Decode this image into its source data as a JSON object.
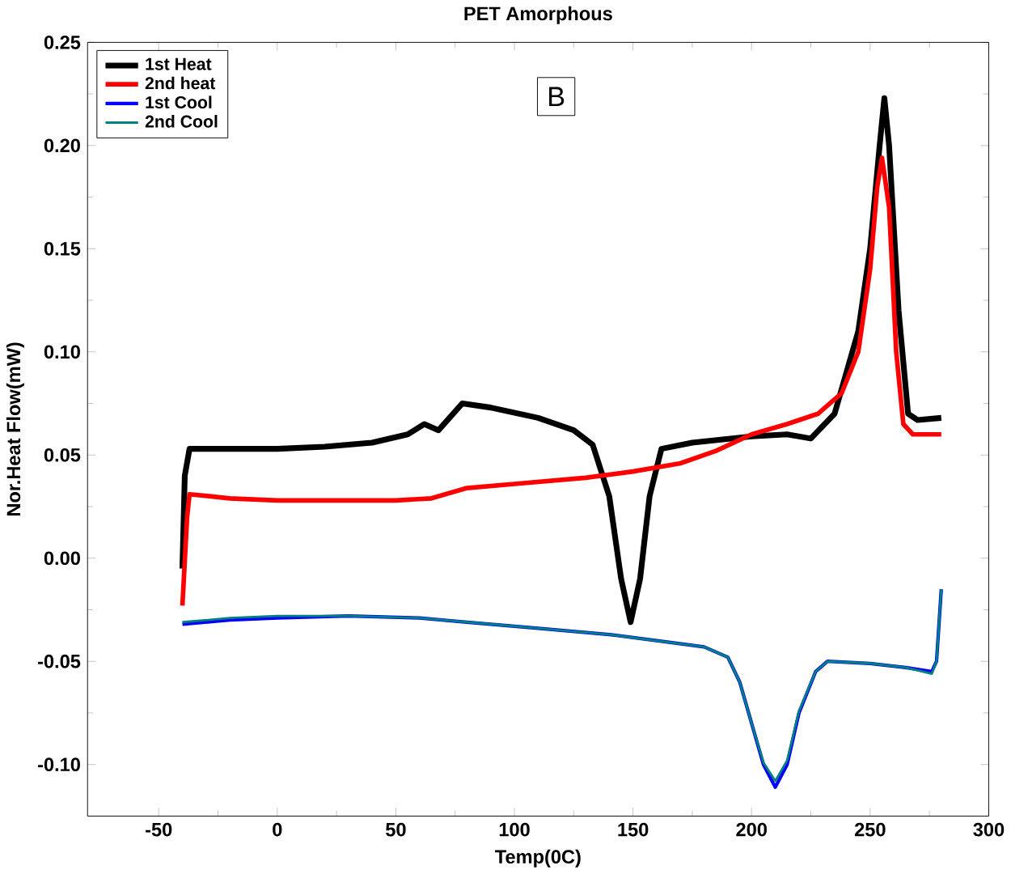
{
  "chart_data": {
    "type": "line",
    "title": "PET Amorphous",
    "xlabel": "Temp(0C)",
    "ylabel": "Nor.Heat Flow(mW)",
    "annotations": [
      "B"
    ],
    "xlim": [
      -80,
      300
    ],
    "ylim": [
      -0.125,
      0.25
    ],
    "xticks": [
      -50,
      0,
      50,
      100,
      150,
      200,
      250,
      300
    ],
    "yticks": [
      {
        "value": -0.1,
        "label": "-0.10"
      },
      {
        "value": -0.05,
        "label": "-0.05"
      },
      {
        "value": 0,
        "label": "0.00"
      },
      {
        "value": 0.05,
        "label": "0.05"
      },
      {
        "value": 0.1,
        "label": "0.10"
      },
      {
        "value": 0.15,
        "label": "0.15"
      },
      {
        "value": 0.2,
        "label": "0.20"
      },
      {
        "value": 0.25,
        "label": "0.25"
      }
    ],
    "legend": "top left",
    "grid": false,
    "marker": "none",
    "line_style": "solid",
    "series": [
      {
        "name": "1st Heat",
        "color": "#000000",
        "x": [
          -40,
          -39,
          -37,
          -20,
          0,
          20,
          40,
          55,
          62,
          68,
          78,
          90,
          110,
          125,
          133,
          140,
          145,
          149,
          153,
          157,
          162,
          175,
          200,
          215,
          225,
          235,
          245,
          250,
          254,
          256,
          258,
          262,
          266,
          270,
          280
        ],
        "values": [
          -0.005,
          0.04,
          0.053,
          0.053,
          0.053,
          0.054,
          0.056,
          0.06,
          0.065,
          0.062,
          0.075,
          0.073,
          0.068,
          0.062,
          0.055,
          0.03,
          -0.01,
          -0.031,
          -0.01,
          0.03,
          0.053,
          0.056,
          0.059,
          0.06,
          0.058,
          0.07,
          0.11,
          0.15,
          0.2,
          0.223,
          0.2,
          0.12,
          0.07,
          0.067,
          0.068
        ]
      },
      {
        "name": "2nd heat",
        "color": "#ff0000",
        "x": [
          -40,
          -38,
          -37,
          -20,
          0,
          50,
          65,
          80,
          100,
          130,
          150,
          170,
          185,
          200,
          215,
          228,
          238,
          245,
          250,
          253,
          255,
          258,
          261,
          264,
          268,
          280
        ],
        "values": [
          -0.023,
          0.02,
          0.031,
          0.029,
          0.028,
          0.028,
          0.029,
          0.034,
          0.036,
          0.039,
          0.042,
          0.046,
          0.052,
          0.06,
          0.065,
          0.07,
          0.08,
          0.1,
          0.14,
          0.18,
          0.194,
          0.17,
          0.1,
          0.065,
          0.06,
          0.06
        ]
      },
      {
        "name": "1st Cool",
        "color": "#0000ff",
        "x": [
          -40,
          -20,
          0,
          30,
          60,
          80,
          110,
          140,
          160,
          180,
          190,
          195,
          200,
          205,
          210,
          215,
          220,
          227,
          232,
          250,
          265,
          276,
          278,
          280
        ],
        "values": [
          -0.032,
          -0.03,
          -0.029,
          -0.028,
          -0.029,
          -0.031,
          -0.034,
          -0.037,
          -0.04,
          -0.043,
          -0.048,
          -0.06,
          -0.08,
          -0.1,
          -0.111,
          -0.1,
          -0.075,
          -0.055,
          -0.05,
          -0.051,
          -0.053,
          -0.055,
          -0.05,
          -0.015
        ]
      },
      {
        "name": "2nd Cool",
        "color": "#008080",
        "x": [
          -40,
          -20,
          0,
          30,
          60,
          80,
          110,
          140,
          160,
          180,
          190,
          195,
          200,
          205,
          210,
          215,
          220,
          227,
          232,
          250,
          265,
          276,
          278,
          280
        ],
        "values": [
          -0.031,
          -0.029,
          -0.028,
          -0.028,
          -0.029,
          -0.031,
          -0.034,
          -0.037,
          -0.04,
          -0.043,
          -0.048,
          -0.06,
          -0.08,
          -0.099,
          -0.108,
          -0.098,
          -0.074,
          -0.055,
          -0.05,
          -0.051,
          -0.053,
          -0.056,
          -0.05,
          -0.015
        ]
      }
    ]
  }
}
